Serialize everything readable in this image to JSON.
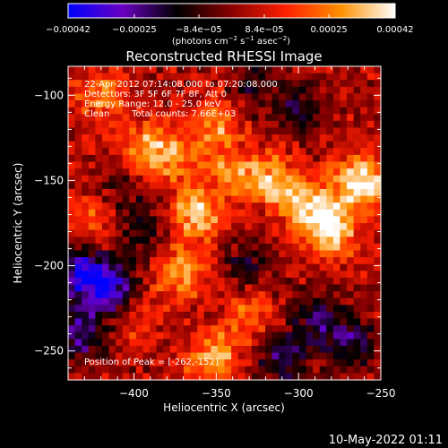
{
  "chart_data": {
    "type": "heatmap",
    "title": "Reconstructed RHESSI Image",
    "xlabel": "Heliocentric X (arcsec)",
    "ylabel": "Heliocentric Y (arcsec)",
    "xlim": [
      -440,
      -250
    ],
    "ylim": [
      -267,
      -83
    ],
    "x_ticks": [
      {
        "value": -400,
        "label": "−400"
      },
      {
        "value": -350,
        "label": "−350"
      },
      {
        "value": -300,
        "label": "−300"
      },
      {
        "value": -250,
        "label": "−250"
      }
    ],
    "y_ticks": [
      {
        "value": -100,
        "label": "−100"
      },
      {
        "value": -150,
        "label": "−150"
      },
      {
        "value": -200,
        "label": "−200"
      },
      {
        "value": -250,
        "label": "−250"
      }
    ],
    "colorbar": {
      "range": [
        -0.00042,
        0.00042
      ],
      "tick_values": [
        -0.00042,
        -0.00025,
        -8.4e-05,
        8.4e-05,
        0.00025,
        0.00042
      ],
      "tick_labels": [
        "−0.00042",
        "−0.00025",
        "−8.4e−05",
        "8.4e−05",
        "0.00025",
        "0.00042"
      ],
      "units_prefix": "(photons cm",
      "units_exp1": "−2",
      "units_mid": " s",
      "units_exp2": "−1",
      "units_mid2": " asec",
      "units_exp3": "−2",
      "units_suffix": ")",
      "colors": [
        "#0000ff",
        "#6a00c0",
        "#000000",
        "#8a0000",
        "#ff2000",
        "#ff9000",
        "#ffffff"
      ]
    },
    "annotations": {
      "time_range": "22-Apr-2012 07:14:08.000 to 07:20:08.000",
      "detectors": "Detectors: 3F 5F 6F 7F 8F, Att 0",
      "energy": "Energy Range: 12.0 - 25.0 keV",
      "method_label": "Clean",
      "counts": "Total counts: 7.66E+03",
      "peak": "Position of Peak = [-262,-152]"
    },
    "peak_position": [
      -262,
      -152
    ],
    "hot_spots": [
      {
        "x": -262,
        "y": -152,
        "value": 0.00042
      },
      {
        "x": -280,
        "y": -180,
        "value": 0.00034
      },
      {
        "x": -295,
        "y": -165,
        "value": 0.0003
      },
      {
        "x": -315,
        "y": -150,
        "value": 0.00026
      },
      {
        "x": -350,
        "y": -115,
        "value": 0.00024
      },
      {
        "x": -340,
        "y": -145,
        "value": 0.00022
      },
      {
        "x": -378,
        "y": -135,
        "value": 0.00022
      },
      {
        "x": -395,
        "y": -130,
        "value": 0.00018
      },
      {
        "x": -362,
        "y": -170,
        "value": 0.00032
      },
      {
        "x": -372,
        "y": -205,
        "value": 0.00026
      },
      {
        "x": -352,
        "y": -255,
        "value": 0.00028
      },
      {
        "x": -420,
        "y": -100,
        "value": 0.0002
      },
      {
        "x": -425,
        "y": -172,
        "value": 0.00018
      },
      {
        "x": -330,
        "y": -230,
        "value": 0.0002
      },
      {
        "x": -400,
        "y": -230,
        "value": 0.00016
      }
    ],
    "cold_spots": [
      {
        "x": -430,
        "y": -205,
        "value": -0.0004
      },
      {
        "x": -412,
        "y": -215,
        "value": -0.00032
      },
      {
        "x": -432,
        "y": -240,
        "value": -0.00028
      },
      {
        "x": -270,
        "y": -245,
        "value": -0.00024
      },
      {
        "x": -290,
        "y": -230,
        "value": -0.0002
      },
      {
        "x": -310,
        "y": -255,
        "value": -0.00024
      },
      {
        "x": -330,
        "y": -200,
        "value": -0.00018
      },
      {
        "x": -395,
        "y": -180,
        "value": -0.00016
      },
      {
        "x": -300,
        "y": -110,
        "value": -0.00018
      },
      {
        "x": -330,
        "y": -95,
        "value": -0.00016
      },
      {
        "x": -410,
        "y": -155,
        "value": -0.00014
      }
    ]
  },
  "footer": {
    "date": "10-May-2022 01:11"
  }
}
